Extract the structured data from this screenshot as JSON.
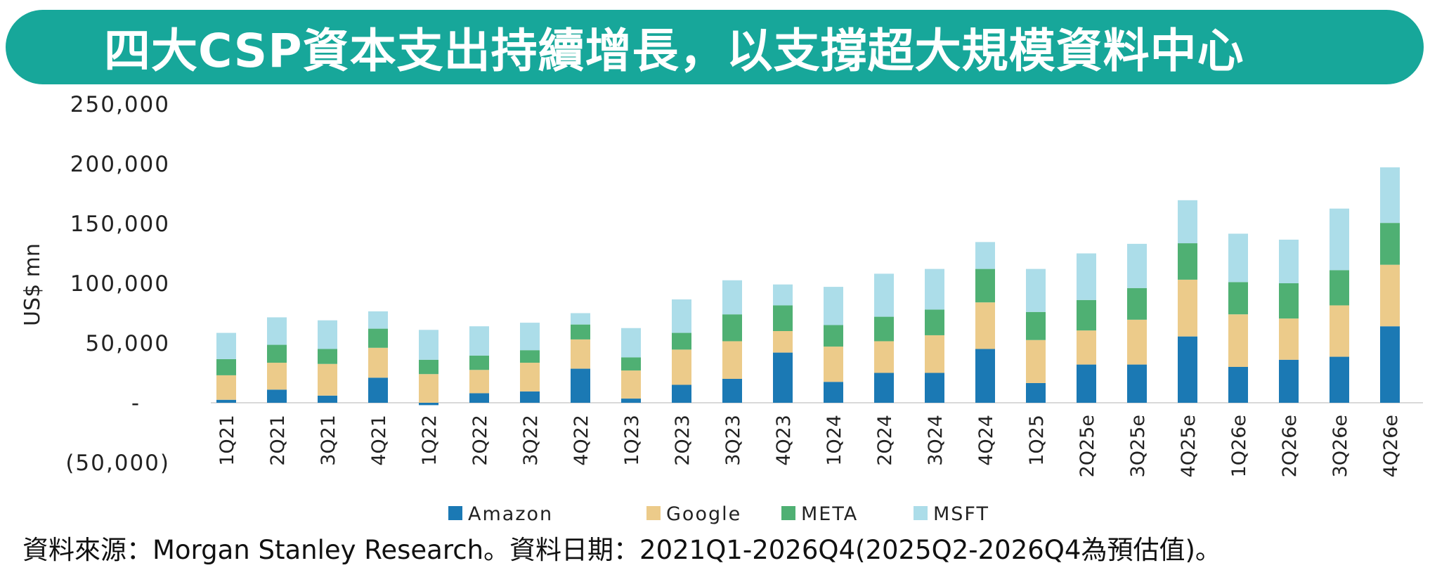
{
  "title": "四大CSP資本支出持續增長，以支撐超大規模資料中心",
  "source_note": "資料來源：Morgan Stanley Research。資料日期：2021Q1-2026Q4(2025Q2-2026Q4為預估值)。",
  "colors": {
    "banner": "#17a79a",
    "Amazon": "#1b79b4",
    "Google": "#eccb8a",
    "META": "#4fb073",
    "MSFT": "#acdde9"
  },
  "chart_data": {
    "type": "bar",
    "stacked": true,
    "ylabel": "US$ mn",
    "ylim": [
      -50000,
      250000
    ],
    "yticks": [
      {
        "value": -50000,
        "label": "(50,000)"
      },
      {
        "value": 0,
        "label": "-"
      },
      {
        "value": 50000,
        "label": "50,000"
      },
      {
        "value": 100000,
        "label": "100,000"
      },
      {
        "value": 150000,
        "label": "150,000"
      },
      {
        "value": 200000,
        "label": "200,000"
      },
      {
        "value": 250000,
        "label": "250,000"
      }
    ],
    "legend_position": "bottom",
    "categories": [
      "1Q21",
      "2Q21",
      "3Q21",
      "4Q21",
      "1Q22",
      "2Q22",
      "3Q22",
      "4Q22",
      "1Q23",
      "2Q23",
      "3Q23",
      "4Q23",
      "1Q24",
      "2Q24",
      "3Q24",
      "4Q24",
      "1Q25",
      "2Q25e",
      "3Q25e",
      "4Q25e",
      "1Q26e",
      "2Q26e",
      "3Q26e",
      "4Q26e"
    ],
    "series": [
      {
        "name": "Amazon",
        "values": [
          2500,
          11000,
          6000,
          21000,
          -2000,
          8000,
          9500,
          28500,
          3500,
          15000,
          20000,
          42000,
          17500,
          25000,
          25000,
          45000,
          16500,
          32000,
          32000,
          55500,
          30000,
          36000,
          38500,
          64000
        ]
      },
      {
        "name": "Google",
        "values": [
          20500,
          22500,
          26500,
          25000,
          24000,
          19500,
          24000,
          24500,
          23500,
          29500,
          31500,
          18000,
          29500,
          26500,
          31500,
          39000,
          36000,
          28500,
          37500,
          47500,
          44000,
          34500,
          43000,
          51500
        ]
      },
      {
        "name": "META",
        "values": [
          13500,
          15000,
          12500,
          16000,
          12000,
          12000,
          10500,
          12500,
          11000,
          14000,
          22500,
          21500,
          18000,
          20500,
          21500,
          28000,
          23500,
          25500,
          26500,
          30500,
          27000,
          29500,
          29500,
          35000
        ]
      },
      {
        "name": "MSFT",
        "values": [
          22000,
          23000,
          24000,
          14500,
          25000,
          24500,
          23000,
          9500,
          24500,
          28000,
          28500,
          17500,
          32000,
          36000,
          34000,
          22500,
          36000,
          39000,
          37000,
          36000,
          40500,
          36500,
          51500,
          46500
        ]
      }
    ]
  }
}
